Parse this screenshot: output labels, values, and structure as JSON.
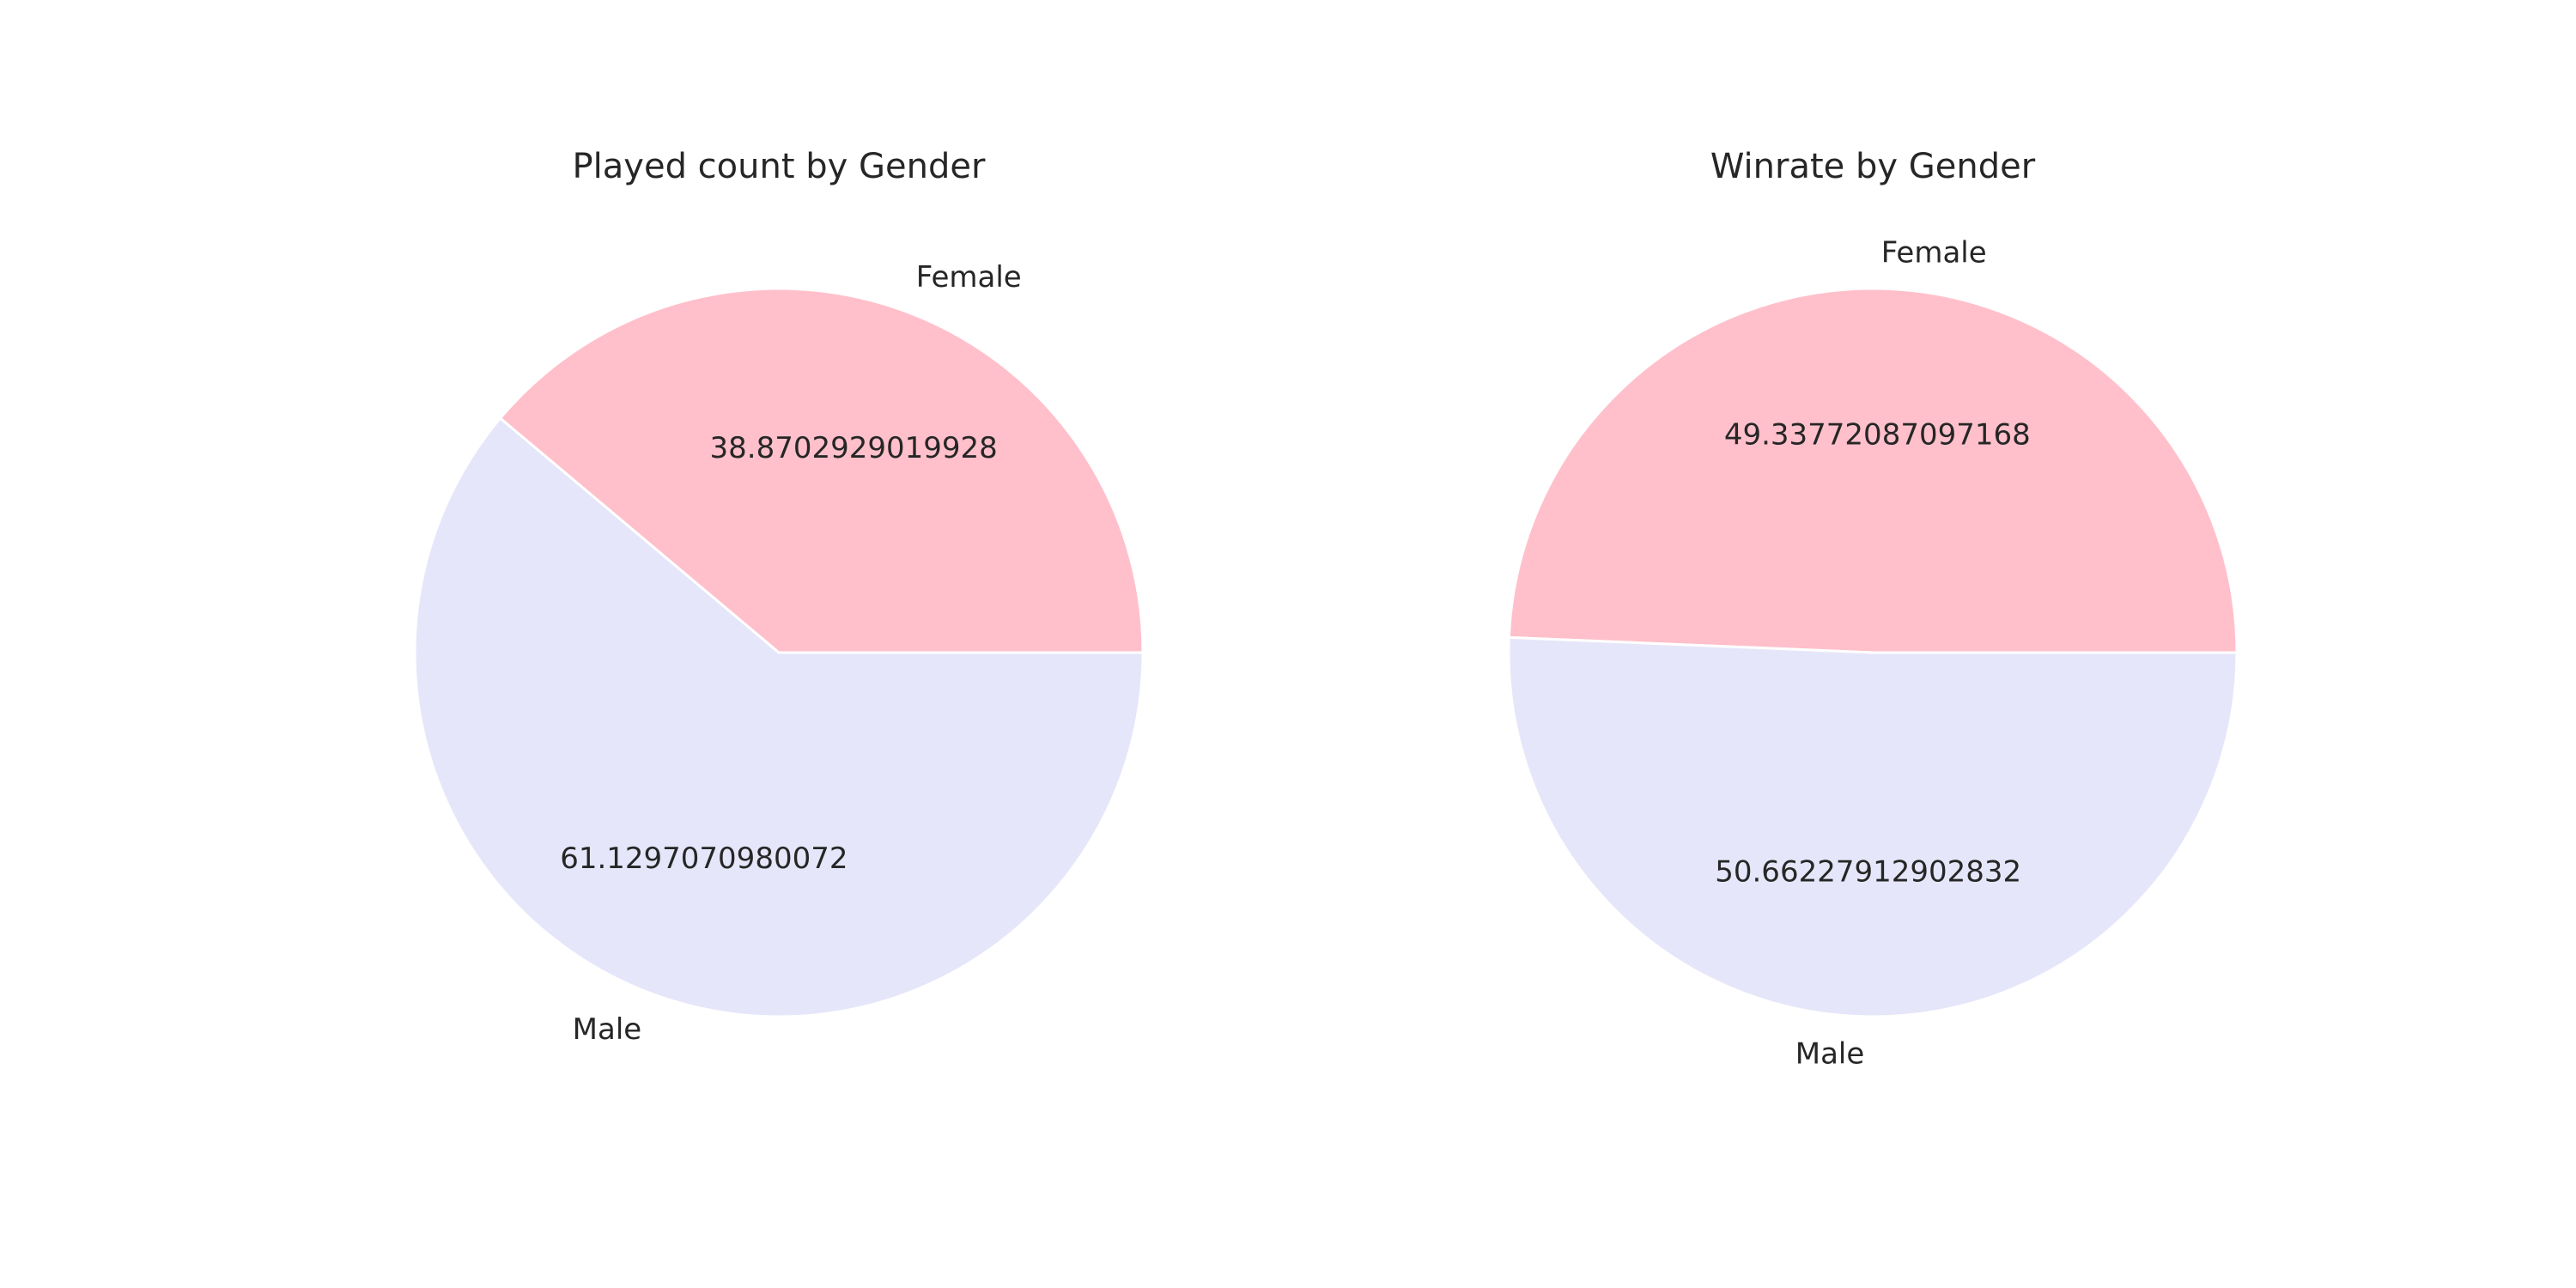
{
  "chart_data": [
    {
      "type": "pie",
      "title": "Played count by Gender",
      "slices": [
        {
          "label": "Female",
          "value": 38.8702929019928,
          "value_label": "38.8702929019928",
          "color": "#ffc0cb"
        },
        {
          "label": "Male",
          "value": 61.1297070980072,
          "value_label": "61.1297070980072",
          "color": "#e6e6fa"
        }
      ],
      "start_angle": 0,
      "direction": "counterclockwise"
    },
    {
      "type": "pie",
      "title": "Winrate by Gender",
      "slices": [
        {
          "label": "Female",
          "value": 49.33772087097168,
          "value_label": "49.33772087097168",
          "color": "#ffc0cb"
        },
        {
          "label": "Male",
          "value": 50.66227912902832,
          "value_label": "50.66227912902832",
          "color": "#e6e6fa"
        }
      ],
      "start_angle": 0,
      "direction": "counterclockwise"
    }
  ]
}
